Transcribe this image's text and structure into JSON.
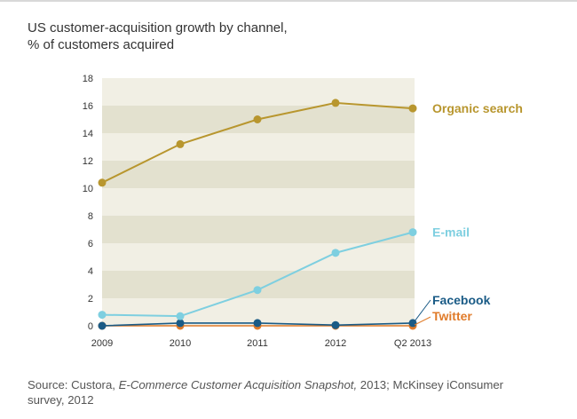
{
  "title_line1": "US customer-acquisition growth by channel,",
  "title_line2": "% of customers acquired",
  "source": {
    "prefix": "Source: Custora, ",
    "italic": "E-Commerce Customer Acquisition Snapshot,",
    "rest": " 2013; McKinsey iConsumer",
    "line2": "survey, 2012"
  },
  "chart_data": {
    "type": "line",
    "title": "US customer-acquisition growth by channel, % of customers acquired",
    "x": [
      "2009",
      "2010",
      "2011",
      "2012",
      "Q2 2013"
    ],
    "ylim": [
      0,
      18
    ],
    "yticks": [
      0,
      2,
      4,
      6,
      8,
      10,
      12,
      14,
      16,
      18
    ],
    "grid": "alternating horizontal bands",
    "legend": "direct labels at right end of lines",
    "band_colors": [
      "#f1efe4",
      "#e3e1cf"
    ],
    "series": [
      {
        "name": "Organic search",
        "color": "#b8962e",
        "values": [
          10.4,
          13.2,
          15.0,
          16.2,
          15.8
        ]
      },
      {
        "name": "E-mail",
        "color": "#7ecfe0",
        "values": [
          0.8,
          0.7,
          2.6,
          5.3,
          6.8
        ]
      },
      {
        "name": "Facebook",
        "color": "#1a5b86",
        "values": [
          0.0,
          0.2,
          0.2,
          0.05,
          0.2
        ]
      },
      {
        "name": "Twitter",
        "color": "#e07b2a",
        "values": [
          0.0,
          0.0,
          0.0,
          0.0,
          0.0
        ]
      }
    ]
  }
}
